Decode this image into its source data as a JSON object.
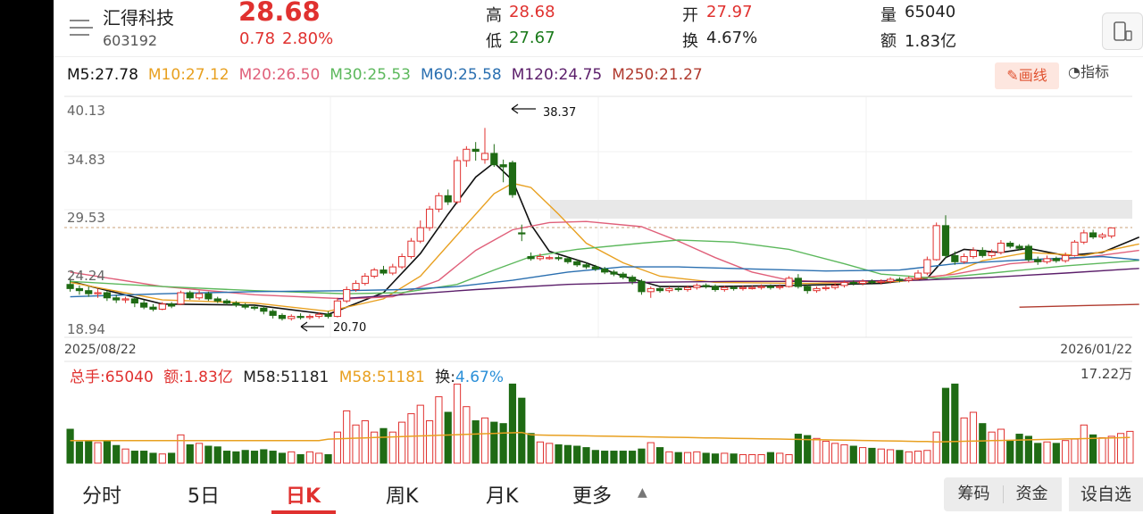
{
  "header": {
    "stock_name": "汇得科技",
    "stock_code": "603192",
    "price": "28.68",
    "change": "0.78",
    "change_pct": "2.80%",
    "high_label": "高",
    "high_value": "28.68",
    "low_label": "低",
    "low_value": "27.67",
    "open_label": "开",
    "open_value": "27.97",
    "turnover_label": "换",
    "turnover_value": "4.67%",
    "volume_label": "量",
    "volume_value": "65040",
    "amount_label": "额",
    "amount_value": "1.83亿"
  },
  "ma_legend": [
    {
      "label": "M5:27.78",
      "color": "#111111"
    },
    {
      "label": "M10:27.12",
      "color": "#e8a020"
    },
    {
      "label": "M20:26.50",
      "color": "#e0607a"
    },
    {
      "label": "M30:25.53",
      "color": "#5cb85c"
    },
    {
      "label": "M60:25.58",
      "color": "#2a6fb0"
    },
    {
      "label": "M120:24.75",
      "color": "#5b1e6a"
    },
    {
      "label": "M250:21.27",
      "color": "#b03a2e"
    }
  ],
  "toolbar": {
    "draw_label": "画线",
    "indicator_label": "指标"
  },
  "price_axis": [
    "40.13",
    "34.83",
    "29.53",
    "24.24",
    "18.94"
  ],
  "date_start": "2025/08/22",
  "date_end": "2026/01/22",
  "annotations": {
    "high": "38.37",
    "low": "20.70"
  },
  "volume_legend": {
    "total_hands": "总手:65040",
    "amount": "额:1.83亿",
    "m58_a": "M58:51181",
    "m58_b": "M58:51181",
    "turnover_label": "换:",
    "turnover_value": "4.67%",
    "vol_max": "17.22万"
  },
  "tabs": [
    {
      "label": "分时"
    },
    {
      "label": "5日"
    },
    {
      "label": "日K"
    },
    {
      "label": "周K"
    },
    {
      "label": "月K"
    },
    {
      "label": "更多"
    }
  ],
  "side_buttons": {
    "chips": "筹码",
    "funds": "资金",
    "self_select": "设自选"
  },
  "chart_data": {
    "type": "candlestick",
    "price_range": [
      18.94,
      40.13
    ],
    "volume_max": 172200,
    "candles": [
      {
        "o": 23.2,
        "c": 22.8,
        "h": 23.9,
        "l": 22.5
      },
      {
        "o": 22.8,
        "c": 22.6,
        "h": 23.1,
        "l": 22.2
      },
      {
        "o": 22.6,
        "c": 22.3,
        "h": 23.0,
        "l": 22.0
      },
      {
        "o": 22.3,
        "c": 22.4,
        "h": 22.8,
        "l": 21.9
      },
      {
        "o": 22.4,
        "c": 21.9,
        "h": 22.6,
        "l": 21.6
      },
      {
        "o": 21.9,
        "c": 21.7,
        "h": 22.2,
        "l": 21.4
      },
      {
        "o": 21.7,
        "c": 21.8,
        "h": 22.0,
        "l": 21.4
      },
      {
        "o": 21.8,
        "c": 21.4,
        "h": 22.0,
        "l": 21.0
      },
      {
        "o": 21.4,
        "c": 21.0,
        "h": 21.7,
        "l": 20.8
      },
      {
        "o": 21.0,
        "c": 20.8,
        "h": 21.3,
        "l": 20.6
      },
      {
        "o": 20.8,
        "c": 21.3,
        "h": 21.5,
        "l": 20.7
      },
      {
        "o": 21.3,
        "c": 21.1,
        "h": 21.5,
        "l": 20.9
      },
      {
        "o": 21.3,
        "c": 22.4,
        "h": 22.6,
        "l": 21.2
      },
      {
        "o": 22.4,
        "c": 21.9,
        "h": 22.6,
        "l": 21.7
      },
      {
        "o": 21.9,
        "c": 22.3,
        "h": 22.6,
        "l": 21.7
      },
      {
        "o": 22.3,
        "c": 21.8,
        "h": 22.5,
        "l": 21.6
      },
      {
        "o": 21.8,
        "c": 21.6,
        "h": 22.0,
        "l": 21.4
      },
      {
        "o": 21.6,
        "c": 21.4,
        "h": 21.8,
        "l": 21.2
      },
      {
        "o": 21.4,
        "c": 21.2,
        "h": 21.6,
        "l": 21.0
      },
      {
        "o": 21.2,
        "c": 21.0,
        "h": 21.4,
        "l": 20.8
      },
      {
        "o": 21.0,
        "c": 20.9,
        "h": 21.2,
        "l": 20.7
      },
      {
        "o": 20.9,
        "c": 20.6,
        "h": 21.1,
        "l": 20.3
      },
      {
        "o": 20.6,
        "c": 20.2,
        "h": 20.8,
        "l": 19.9
      },
      {
        "o": 20.2,
        "c": 19.9,
        "h": 20.4,
        "l": 19.7
      },
      {
        "o": 19.9,
        "c": 20.1,
        "h": 20.3,
        "l": 19.7
      },
      {
        "o": 20.1,
        "c": 20.0,
        "h": 20.4,
        "l": 19.8
      },
      {
        "o": 20.0,
        "c": 20.1,
        "h": 20.3,
        "l": 19.8
      },
      {
        "o": 20.1,
        "c": 20.3,
        "h": 20.5,
        "l": 19.9
      },
      {
        "o": 20.3,
        "c": 20.1,
        "h": 20.6,
        "l": 19.9
      },
      {
        "o": 20.1,
        "c": 21.6,
        "h": 21.9,
        "l": 20.0
      },
      {
        "o": 21.6,
        "c": 22.7,
        "h": 23.0,
        "l": 21.4
      },
      {
        "o": 22.7,
        "c": 23.3,
        "h": 23.6,
        "l": 22.5
      },
      {
        "o": 23.3,
        "c": 24.0,
        "h": 24.3,
        "l": 23.1
      },
      {
        "o": 24.0,
        "c": 24.6,
        "h": 24.8,
        "l": 23.8
      },
      {
        "o": 24.6,
        "c": 24.3,
        "h": 25.0,
        "l": 24.1
      },
      {
        "o": 24.3,
        "c": 24.9,
        "h": 25.2,
        "l": 24.1
      },
      {
        "o": 24.9,
        "c": 25.9,
        "h": 26.2,
        "l": 24.7
      },
      {
        "o": 25.9,
        "c": 27.4,
        "h": 27.7,
        "l": 25.7
      },
      {
        "o": 27.4,
        "c": 28.7,
        "h": 29.4,
        "l": 27.2
      },
      {
        "o": 28.7,
        "c": 30.5,
        "h": 30.8,
        "l": 28.4
      },
      {
        "o": 30.5,
        "c": 31.8,
        "h": 32.1,
        "l": 30.2
      },
      {
        "o": 31.8,
        "c": 31.2,
        "h": 32.4,
        "l": 30.9
      },
      {
        "o": 31.2,
        "c": 35.2,
        "h": 35.6,
        "l": 31.0
      },
      {
        "o": 35.2,
        "c": 36.3,
        "h": 36.6,
        "l": 34.6
      },
      {
        "o": 36.3,
        "c": 36.1,
        "h": 37.0,
        "l": 35.2
      },
      {
        "o": 35.3,
        "c": 35.9,
        "h": 38.37,
        "l": 34.9
      },
      {
        "o": 35.9,
        "c": 34.8,
        "h": 36.8,
        "l": 34.6
      },
      {
        "o": 34.8,
        "c": 34.6,
        "h": 35.3,
        "l": 33.1
      },
      {
        "o": 35.0,
        "c": 31.9,
        "h": 35.2,
        "l": 31.6
      },
      {
        "o": 28.2,
        "c": 28.1,
        "h": 29.0,
        "l": 27.4
      },
      {
        "o": 25.9,
        "c": 25.7,
        "h": 26.3,
        "l": 25.5
      },
      {
        "o": 25.7,
        "c": 25.9,
        "h": 26.2,
        "l": 25.5
      },
      {
        "o": 25.8,
        "c": 25.8,
        "h": 26.0,
        "l": 25.6
      },
      {
        "o": 25.8,
        "c": 25.7,
        "h": 26.0,
        "l": 25.5
      },
      {
        "o": 25.7,
        "c": 25.4,
        "h": 25.9,
        "l": 25.2
      },
      {
        "o": 25.4,
        "c": 25.1,
        "h": 25.6,
        "l": 24.9
      },
      {
        "o": 25.1,
        "c": 24.9,
        "h": 25.3,
        "l": 24.7
      },
      {
        "o": 24.9,
        "c": 24.7,
        "h": 25.1,
        "l": 24.5
      },
      {
        "o": 24.7,
        "c": 24.4,
        "h": 24.9,
        "l": 24.2
      },
      {
        "o": 24.4,
        "c": 24.2,
        "h": 24.6,
        "l": 24.0
      },
      {
        "o": 24.2,
        "c": 23.9,
        "h": 24.4,
        "l": 23.7
      },
      {
        "o": 23.9,
        "c": 23.5,
        "h": 24.1,
        "l": 23.2
      },
      {
        "o": 23.5,
        "c": 22.5,
        "h": 23.7,
        "l": 22.2
      },
      {
        "o": 22.5,
        "c": 22.8,
        "h": 23.0,
        "l": 21.9
      },
      {
        "o": 22.8,
        "c": 22.6,
        "h": 23.0,
        "l": 22.4
      },
      {
        "o": 22.6,
        "c": 22.8,
        "h": 23.0,
        "l": 22.4
      },
      {
        "o": 22.8,
        "c": 22.7,
        "h": 23.0,
        "l": 22.5
      },
      {
        "o": 22.7,
        "c": 22.9,
        "h": 23.1,
        "l": 22.5
      },
      {
        "o": 22.9,
        "c": 23.1,
        "h": 23.3,
        "l": 22.7
      },
      {
        "o": 23.1,
        "c": 23.0,
        "h": 23.3,
        "l": 22.8
      },
      {
        "o": 23.0,
        "c": 22.7,
        "h": 23.2,
        "l": 22.5
      },
      {
        "o": 22.7,
        "c": 22.9,
        "h": 23.1,
        "l": 22.5
      },
      {
        "o": 22.9,
        "c": 22.8,
        "h": 23.1,
        "l": 22.6
      },
      {
        "o": 22.8,
        "c": 22.9,
        "h": 23.1,
        "l": 22.6
      },
      {
        "o": 22.9,
        "c": 22.9,
        "h": 23.1,
        "l": 22.7
      },
      {
        "o": 22.9,
        "c": 23.0,
        "h": 23.2,
        "l": 22.7
      },
      {
        "o": 23.0,
        "c": 22.9,
        "h": 23.2,
        "l": 22.7
      },
      {
        "o": 22.9,
        "c": 23.0,
        "h": 23.2,
        "l": 22.7
      },
      {
        "o": 23.0,
        "c": 23.8,
        "h": 24.0,
        "l": 22.9
      },
      {
        "o": 23.8,
        "c": 23.0,
        "h": 24.2,
        "l": 22.8
      },
      {
        "o": 23.0,
        "c": 22.6,
        "h": 23.2,
        "l": 22.3
      },
      {
        "o": 22.6,
        "c": 22.8,
        "h": 23.0,
        "l": 22.4
      },
      {
        "o": 22.8,
        "c": 22.9,
        "h": 23.1,
        "l": 22.6
      },
      {
        "o": 22.9,
        "c": 23.1,
        "h": 23.3,
        "l": 22.7
      },
      {
        "o": 23.1,
        "c": 23.4,
        "h": 23.6,
        "l": 22.9
      },
      {
        "o": 23.4,
        "c": 23.3,
        "h": 23.6,
        "l": 23.1
      },
      {
        "o": 23.3,
        "c": 23.5,
        "h": 23.7,
        "l": 23.1
      },
      {
        "o": 23.5,
        "c": 23.4,
        "h": 23.7,
        "l": 23.2
      },
      {
        "o": 23.4,
        "c": 23.5,
        "h": 23.7,
        "l": 23.2
      },
      {
        "o": 23.5,
        "c": 23.7,
        "h": 23.9,
        "l": 23.3
      },
      {
        "o": 23.7,
        "c": 23.6,
        "h": 23.9,
        "l": 23.4
      },
      {
        "o": 23.6,
        "c": 23.8,
        "h": 24.0,
        "l": 23.4
      },
      {
        "o": 23.8,
        "c": 24.3,
        "h": 24.6,
        "l": 23.6
      },
      {
        "o": 24.3,
        "c": 25.6,
        "h": 25.9,
        "l": 24.1
      },
      {
        "o": 25.6,
        "c": 28.9,
        "h": 29.2,
        "l": 25.5
      },
      {
        "o": 28.9,
        "c": 26.0,
        "h": 29.9,
        "l": 25.7
      },
      {
        "o": 26.0,
        "c": 25.4,
        "h": 26.4,
        "l": 25.1
      },
      {
        "o": 25.4,
        "c": 25.9,
        "h": 26.2,
        "l": 25.2
      },
      {
        "o": 25.9,
        "c": 26.5,
        "h": 26.8,
        "l": 25.7
      },
      {
        "o": 26.5,
        "c": 26.0,
        "h": 26.8,
        "l": 25.8
      },
      {
        "o": 26.0,
        "c": 26.3,
        "h": 26.6,
        "l": 25.8
      },
      {
        "o": 26.3,
        "c": 27.2,
        "h": 27.5,
        "l": 26.1
      },
      {
        "o": 27.2,
        "c": 26.9,
        "h": 27.4,
        "l": 26.7
      },
      {
        "o": 26.9,
        "c": 26.7,
        "h": 27.1,
        "l": 26.5
      },
      {
        "o": 26.9,
        "c": 25.6,
        "h": 27.1,
        "l": 25.4
      },
      {
        "o": 25.6,
        "c": 25.4,
        "h": 25.9,
        "l": 25.1
      },
      {
        "o": 25.4,
        "c": 25.7,
        "h": 26.0,
        "l": 25.2
      },
      {
        "o": 25.7,
        "c": 25.5,
        "h": 25.9,
        "l": 25.3
      },
      {
        "o": 25.5,
        "c": 26.0,
        "h": 26.3,
        "l": 25.3
      },
      {
        "o": 26.0,
        "c": 27.3,
        "h": 27.5,
        "l": 25.9
      },
      {
        "o": 27.3,
        "c": 28.2,
        "h": 28.5,
        "l": 27.1
      },
      {
        "o": 28.2,
        "c": 27.8,
        "h": 28.5,
        "l": 27.6
      },
      {
        "o": 27.8,
        "c": 28.0,
        "h": 28.2,
        "l": 27.6
      },
      {
        "o": 27.9,
        "c": 28.68,
        "h": 28.68,
        "l": 27.67
      }
    ],
    "ma_lines": {
      "M5": [
        [
          0,
          23.5
        ],
        [
          10,
          21.3
        ],
        [
          20,
          21.2
        ],
        [
          28,
          20.3
        ],
        [
          34,
          22.4
        ],
        [
          38,
          26.2
        ],
        [
          41,
          30.0
        ],
        [
          44,
          33.6
        ],
        [
          46,
          35.0
        ],
        [
          48,
          33.3
        ],
        [
          50,
          29.0
        ],
        [
          52,
          26.4
        ],
        [
          56,
          25.3
        ],
        [
          60,
          24.0
        ],
        [
          64,
          23.0
        ],
        [
          70,
          23.0
        ],
        [
          78,
          23.1
        ],
        [
          88,
          23.3
        ],
        [
          93,
          23.8
        ],
        [
          95,
          25.8
        ],
        [
          97,
          26.6
        ],
        [
          101,
          26.3
        ],
        [
          104,
          26.7
        ],
        [
          108,
          26.0
        ],
        [
          112,
          26.3
        ],
        [
          116,
          27.78
        ]
      ],
      "M10": [
        [
          0,
          23.4
        ],
        [
          10,
          21.7
        ],
        [
          20,
          21.4
        ],
        [
          28,
          20.6
        ],
        [
          34,
          21.8
        ],
        [
          38,
          24.0
        ],
        [
          42,
          28.0
        ],
        [
          46,
          32.0
        ],
        [
          48,
          33.0
        ],
        [
          50,
          32.6
        ],
        [
          53,
          30.0
        ],
        [
          56,
          27.2
        ],
        [
          60,
          25.3
        ],
        [
          64,
          24.0
        ],
        [
          70,
          23.4
        ],
        [
          80,
          23.3
        ],
        [
          90,
          23.5
        ],
        [
          95,
          24.1
        ],
        [
          99,
          25.5
        ],
        [
          104,
          26.3
        ],
        [
          110,
          26.0
        ],
        [
          116,
          27.12
        ]
      ],
      "M20": [
        [
          0,
          24.4
        ],
        [
          10,
          23.0
        ],
        [
          20,
          22.2
        ],
        [
          30,
          21.8
        ],
        [
          35,
          22.0
        ],
        [
          40,
          23.6
        ],
        [
          44,
          26.5
        ],
        [
          48,
          28.5
        ],
        [
          52,
          29.2
        ],
        [
          56,
          29.3
        ],
        [
          62,
          28.8
        ],
        [
          66,
          27.4
        ],
        [
          70,
          25.8
        ],
        [
          74,
          24.4
        ],
        [
          78,
          23.6
        ],
        [
          84,
          23.4
        ],
        [
          90,
          23.6
        ],
        [
          96,
          24.2
        ],
        [
          102,
          25.2
        ],
        [
          110,
          25.8
        ],
        [
          116,
          26.5
        ]
      ],
      "M30": [
        [
          0,
          23.5
        ],
        [
          10,
          23.0
        ],
        [
          20,
          22.6
        ],
        [
          30,
          22.3
        ],
        [
          36,
          22.4
        ],
        [
          42,
          23.2
        ],
        [
          46,
          24.6
        ],
        [
          50,
          25.9
        ],
        [
          55,
          26.6
        ],
        [
          62,
          27.2
        ],
        [
          66,
          27.5
        ],
        [
          72,
          27.3
        ],
        [
          78,
          26.6
        ],
        [
          84,
          25.2
        ],
        [
          88,
          24.2
        ],
        [
          94,
          23.8
        ],
        [
          100,
          24.3
        ],
        [
          108,
          25.0
        ],
        [
          116,
          25.53
        ]
      ],
      "M60": [
        [
          0,
          22.0
        ],
        [
          10,
          22.3
        ],
        [
          20,
          22.5
        ],
        [
          30,
          22.6
        ],
        [
          36,
          22.7
        ],
        [
          42,
          23.0
        ],
        [
          48,
          23.6
        ],
        [
          54,
          24.4
        ],
        [
          60,
          24.9
        ],
        [
          66,
          24.9
        ],
        [
          74,
          24.7
        ],
        [
          82,
          24.5
        ],
        [
          90,
          24.6
        ],
        [
          96,
          25.2
        ],
        [
          104,
          25.6
        ],
        [
          112,
          25.9
        ],
        [
          116,
          25.58
        ]
      ],
      "M120": [
        [
          29,
          21.8
        ],
        [
          36,
          22.2
        ],
        [
          44,
          22.7
        ],
        [
          54,
          23.2
        ],
        [
          62,
          23.4
        ],
        [
          72,
          23.5
        ],
        [
          82,
          23.5
        ],
        [
          92,
          23.6
        ],
        [
          100,
          23.9
        ],
        [
          108,
          24.3
        ],
        [
          116,
          24.75
        ]
      ],
      "M250": [
        [
          103,
          21.0
        ],
        [
          110,
          21.15
        ],
        [
          116,
          21.27
        ]
      ]
    },
    "volume_ma": 51181,
    "volume_values": [
      48,
      30,
      31,
      29,
      31,
      25,
      20,
      17,
      17,
      14,
      13,
      14,
      40,
      26,
      28,
      24,
      23,
      17,
      16,
      18,
      17,
      19,
      17,
      14,
      16,
      12,
      16,
      14,
      12,
      44,
      74,
      54,
      60,
      44,
      49,
      44,
      58,
      70,
      82,
      60,
      94,
      72,
      112,
      80,
      60,
      64,
      58,
      56,
      112,
      92,
      42,
      30,
      28,
      26,
      25,
      24,
      22,
      18,
      17,
      17,
      17,
      17,
      20,
      29,
      22,
      16,
      15,
      15,
      16,
      14,
      13,
      14,
      13,
      12,
      12,
      12,
      15,
      14,
      12,
      41,
      39,
      35,
      31,
      28,
      26,
      24,
      22,
      21,
      20,
      19,
      18,
      16,
      17,
      18,
      44,
      106,
      112,
      64,
      72,
      56,
      44,
      48,
      32,
      41,
      38,
      28,
      30,
      28,
      32,
      34,
      54,
      40,
      36,
      38,
      42,
      45
    ]
  }
}
